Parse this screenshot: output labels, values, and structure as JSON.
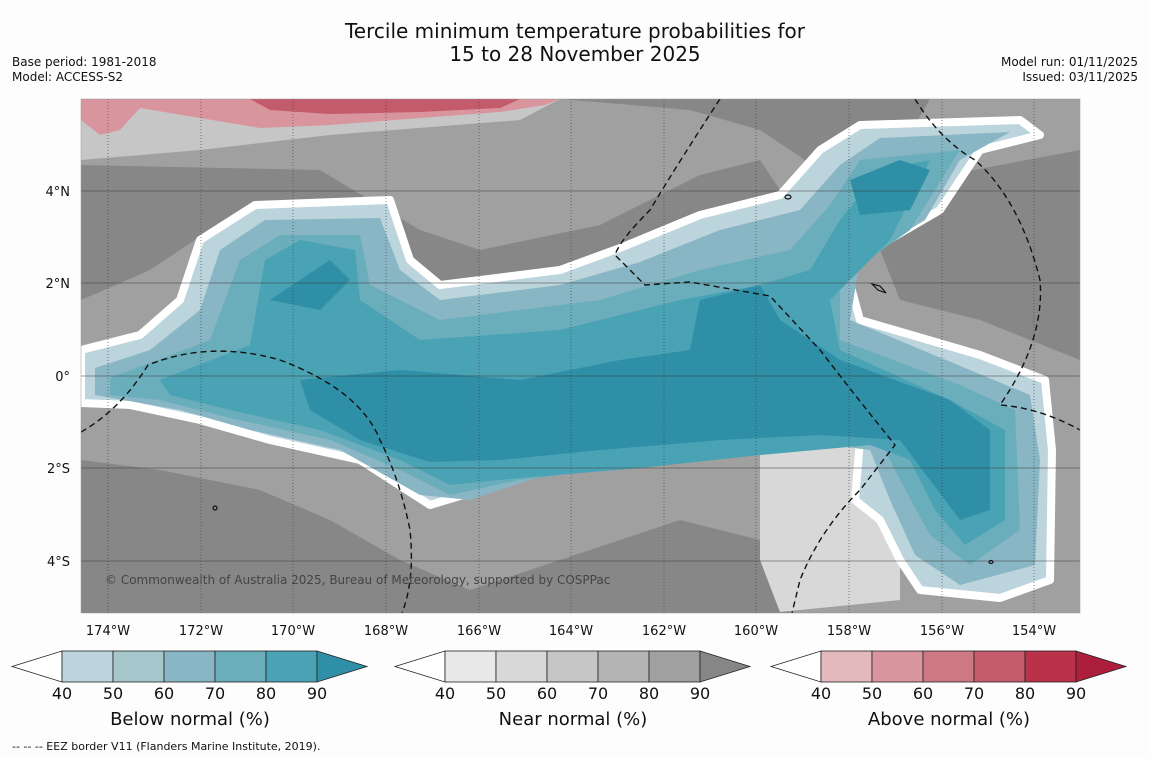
{
  "header": {
    "title_line1": "Tercile minimum temperature probabilities for",
    "title_line2": "15 to 28 November 2025",
    "base_period": "Base period: 1981-2018",
    "model": "Model: ACCESS-S2",
    "model_run": "Model run: 01/11/2025",
    "issued": "Issued: 03/11/2025"
  },
  "map": {
    "x_ticks": [
      "174°W",
      "172°W",
      "170°W",
      "168°W",
      "166°W",
      "164°W",
      "162°W",
      "160°W",
      "158°W",
      "156°W",
      "154°W"
    ],
    "y_ticks": [
      "4°N",
      "2°N",
      "0°",
      "2°S",
      "4°S"
    ],
    "copyright": "© Commonwealth of Australia 2025, Bureau of Meteorology, supported by COSPPac"
  },
  "colorbars": [
    {
      "label": "Below normal (%)",
      "ticks": [
        "40",
        "50",
        "60",
        "70",
        "80",
        "90"
      ],
      "colors": [
        "#bcd5dc",
        "#a5c7cc",
        "#89b6c4",
        "#6aaebc",
        "#4aa2b5",
        "#2e8fa6"
      ]
    },
    {
      "label": "Near normal (%)",
      "ticks": [
        "40",
        "50",
        "60",
        "70",
        "80",
        "90"
      ],
      "colors": [
        "#e8e8e8",
        "#d8d8d8",
        "#c6c6c6",
        "#b4b4b4",
        "#a0a0a0",
        "#868686"
      ]
    },
    {
      "label": "Above normal (%)",
      "ticks": [
        "40",
        "50",
        "60",
        "70",
        "80",
        "90"
      ],
      "colors": [
        "#e4b9be",
        "#d9959d",
        "#cd7882",
        "#c45b6a",
        "#b93249",
        "#ac1e3c"
      ]
    }
  ],
  "footer": {
    "eez_legend": "--  --  -- EEZ border V11 (Flanders Marine Institute, 2019)."
  }
}
